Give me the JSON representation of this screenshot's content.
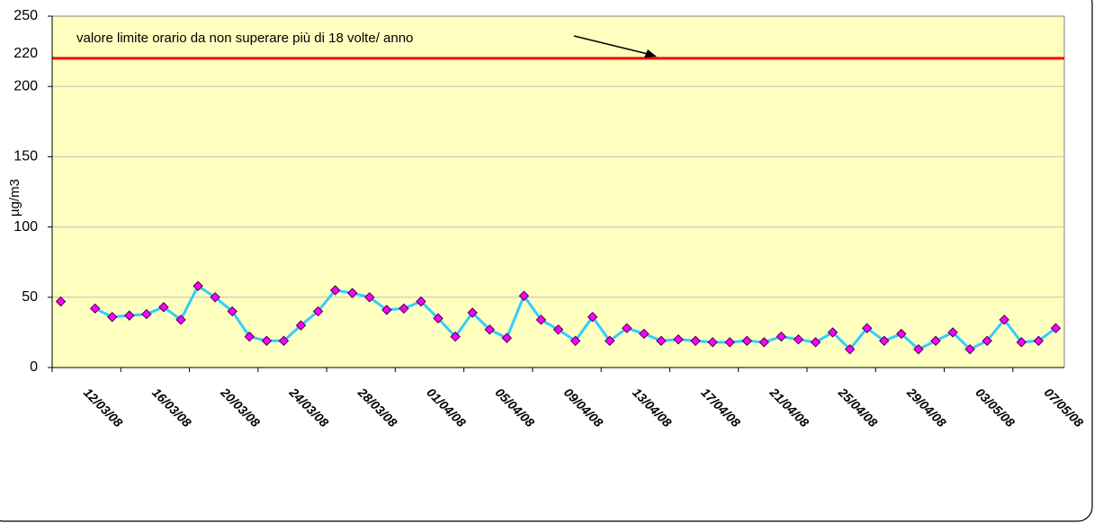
{
  "chart_data": {
    "type": "line",
    "y_label": "µg/m3",
    "annotation": "valore limite orario da non superare più di 18 volte/ anno",
    "limit_line": {
      "value": 220,
      "color": "#ff0000"
    },
    "categories": [
      null,
      "12/03/08",
      null,
      null,
      null,
      "16/03/08",
      null,
      null,
      null,
      "20/03/08",
      null,
      null,
      null,
      "24/03/08",
      null,
      null,
      null,
      "28/03/08",
      null,
      null,
      null,
      "01/04/08",
      null,
      null,
      null,
      "05/04/08",
      null,
      null,
      null,
      "09/04/08",
      null,
      null,
      null,
      "13/04/08",
      null,
      null,
      null,
      "17/04/08",
      null,
      null,
      null,
      "21/04/08",
      null,
      null,
      null,
      "25/04/08",
      null,
      null,
      null,
      "29/04/08",
      null,
      null,
      null,
      "03/05/08",
      null,
      null,
      null,
      "07/05/08",
      null
    ],
    "series": [
      {
        "color": "#33ccff",
        "marker_color": "#ff00ff",
        "values": [
          47,
          null,
          42,
          36,
          37,
          38,
          43,
          34,
          58,
          50,
          40,
          22,
          19,
          19,
          30,
          40,
          55,
          53,
          50,
          41,
          42,
          47,
          35,
          22,
          39,
          27,
          21,
          51,
          34,
          27,
          19,
          36,
          19,
          28,
          24,
          19,
          20,
          19,
          18,
          18,
          19,
          18,
          22,
          20,
          18,
          25,
          13,
          28,
          19,
          24,
          13,
          19,
          25,
          13,
          19,
          34,
          18,
          19,
          28
        ]
      }
    ],
    "ylim": [
      0,
      250
    ],
    "yticks": [
      0,
      50,
      100,
      150,
      200,
      250
    ],
    "grid": true,
    "plot_background": "#ffffc0"
  }
}
